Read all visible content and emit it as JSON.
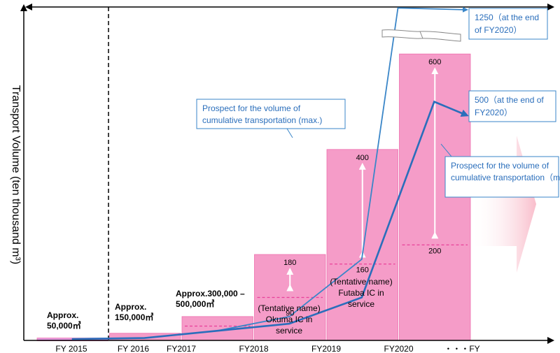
{
  "chart_data": {
    "type": "bar",
    "ylabel": "Transport Volume (ten thousand m³)",
    "x_axis_suffix": "・・・FY",
    "categories": [
      "FY 2015",
      "FY 2016",
      "FY2017",
      "FY2018",
      "FY2019",
      "FY2020"
    ],
    "volume_labels": [
      "Approx.\n50,000㎥",
      "Approx.\n150,000㎥",
      "Approx.300,000 –\n500,000㎥",
      "",
      "",
      ""
    ],
    "bars": [
      {
        "category": "FY 2015",
        "min": 5,
        "max": 5
      },
      {
        "category": "FY 2016",
        "min": 15,
        "max": 15
      },
      {
        "category": "FY2017",
        "min": 30,
        "max": 50
      },
      {
        "category": "FY2018",
        "min": 90,
        "max": 180,
        "min_label": "90",
        "max_label": "180"
      },
      {
        "category": "FY2019",
        "min": 160,
        "max": 400,
        "min_label": "160",
        "max_label": "400"
      },
      {
        "category": "FY2020",
        "min": 200,
        "max": 600,
        "min_label": "200",
        "max_label": "600"
      }
    ],
    "annotations": [
      {
        "category": "FY2018",
        "text": "(Tentative name)\nOkuma IC in\nservice"
      },
      {
        "category": "FY2019",
        "text": "(Tentative name)\nFutaba IC in\nservice"
      }
    ],
    "series": [
      {
        "name": "Prospect for the volume of\ncumulative transportation (max.)",
        "end_label": "1250（at the end\nof FY2020）",
        "x": [
          0.5,
          1.5,
          2.5,
          3.5,
          4.5,
          5.0
        ],
        "values": [
          3,
          5,
          20,
          50,
          170,
          1250
        ]
      },
      {
        "name": "Prospect for the volume of\ncumulative transportation（min.）",
        "end_label": "500（at the end of\nFY2020）",
        "x": [
          0.5,
          1.5,
          2.5,
          3.5,
          4.5,
          5.5
        ],
        "values": [
          3,
          5,
          20,
          35,
          90,
          500
        ]
      }
    ],
    "ylim": [
      0,
      700
    ],
    "axis_break": true
  },
  "colors": {
    "bar": "#f59cc8",
    "bar_edge": "#ee6fae",
    "dashed": "#e8409a",
    "line": "#3a86c8",
    "line_min": "#2a6ebb",
    "fy2015_bar": "#e39be0",
    "future_arrow": "#f9c7d0"
  }
}
